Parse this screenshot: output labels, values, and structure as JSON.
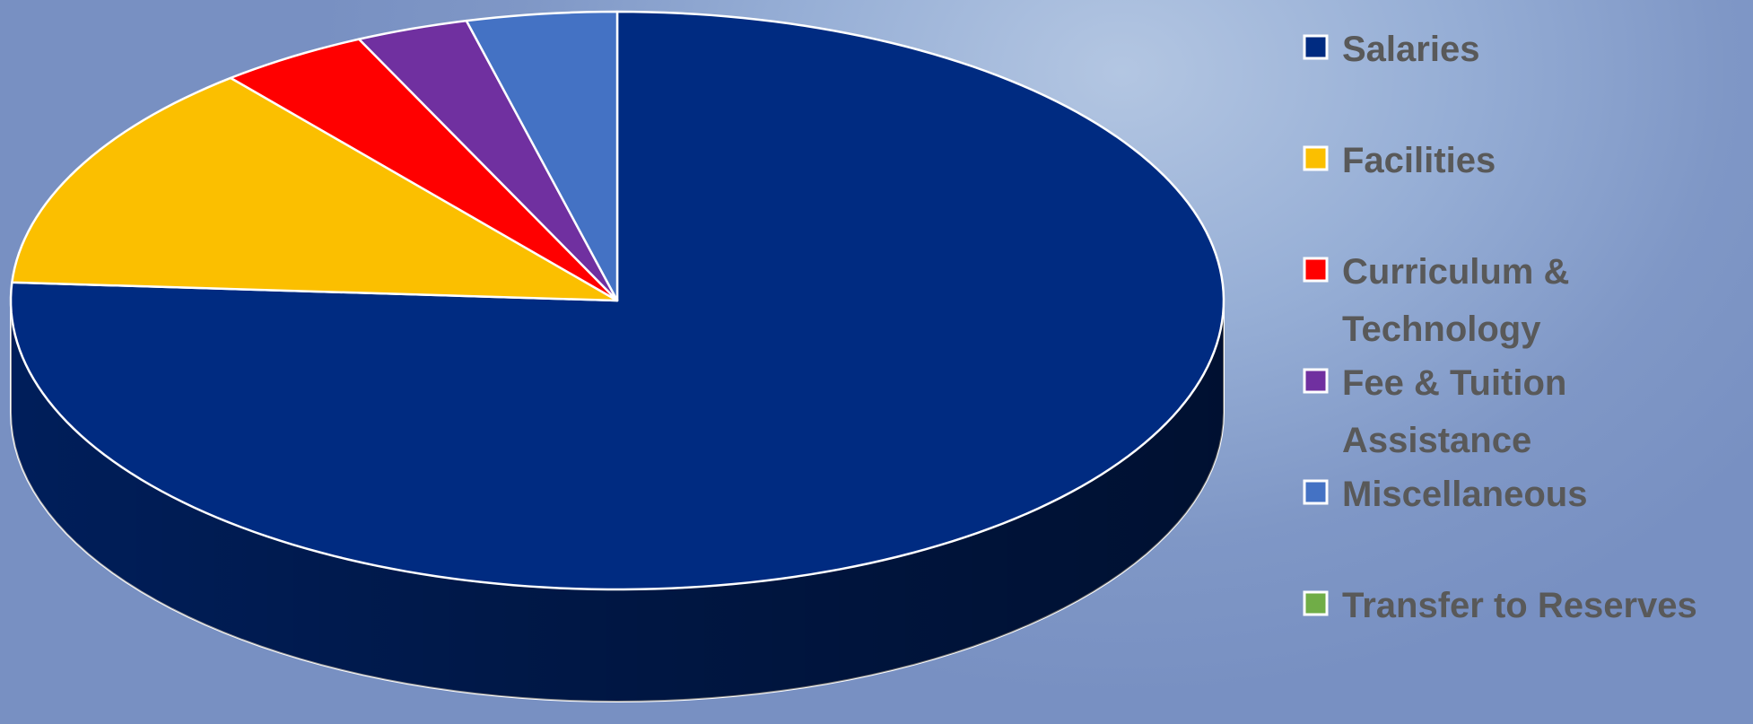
{
  "chart_data": {
    "type": "pie",
    "style": "3d",
    "start_angle": "top, clockwise",
    "legend_position": "right",
    "slices": [
      {
        "label": "Salaries",
        "legend_lines": [
          "Salaries"
        ],
        "value": 76.0,
        "color": "#002b81"
      },
      {
        "label": "Facilities",
        "legend_lines": [
          "Facilities"
        ],
        "value": 13.0,
        "color": "#fbbf00"
      },
      {
        "label": "Curriculum & Technology",
        "legend_lines": [
          "Curriculum &",
          "Technology"
        ],
        "value": 4.0,
        "color": "#ff0000"
      },
      {
        "label": "Fee & Tuition Assistance",
        "legend_lines": [
          "Fee & Tuition",
          "Assistance"
        ],
        "value": 3.0,
        "color": "#7030a0"
      },
      {
        "label": "Miscellaneous",
        "legend_lines": [
          "Miscellaneous"
        ],
        "value": 4.0,
        "color": "#4472c4"
      },
      {
        "label": "Transfer to Reserves",
        "legend_lines": [
          "Transfer to Reserves"
        ],
        "value": 0.0,
        "color": "#70ad47"
      }
    ]
  }
}
